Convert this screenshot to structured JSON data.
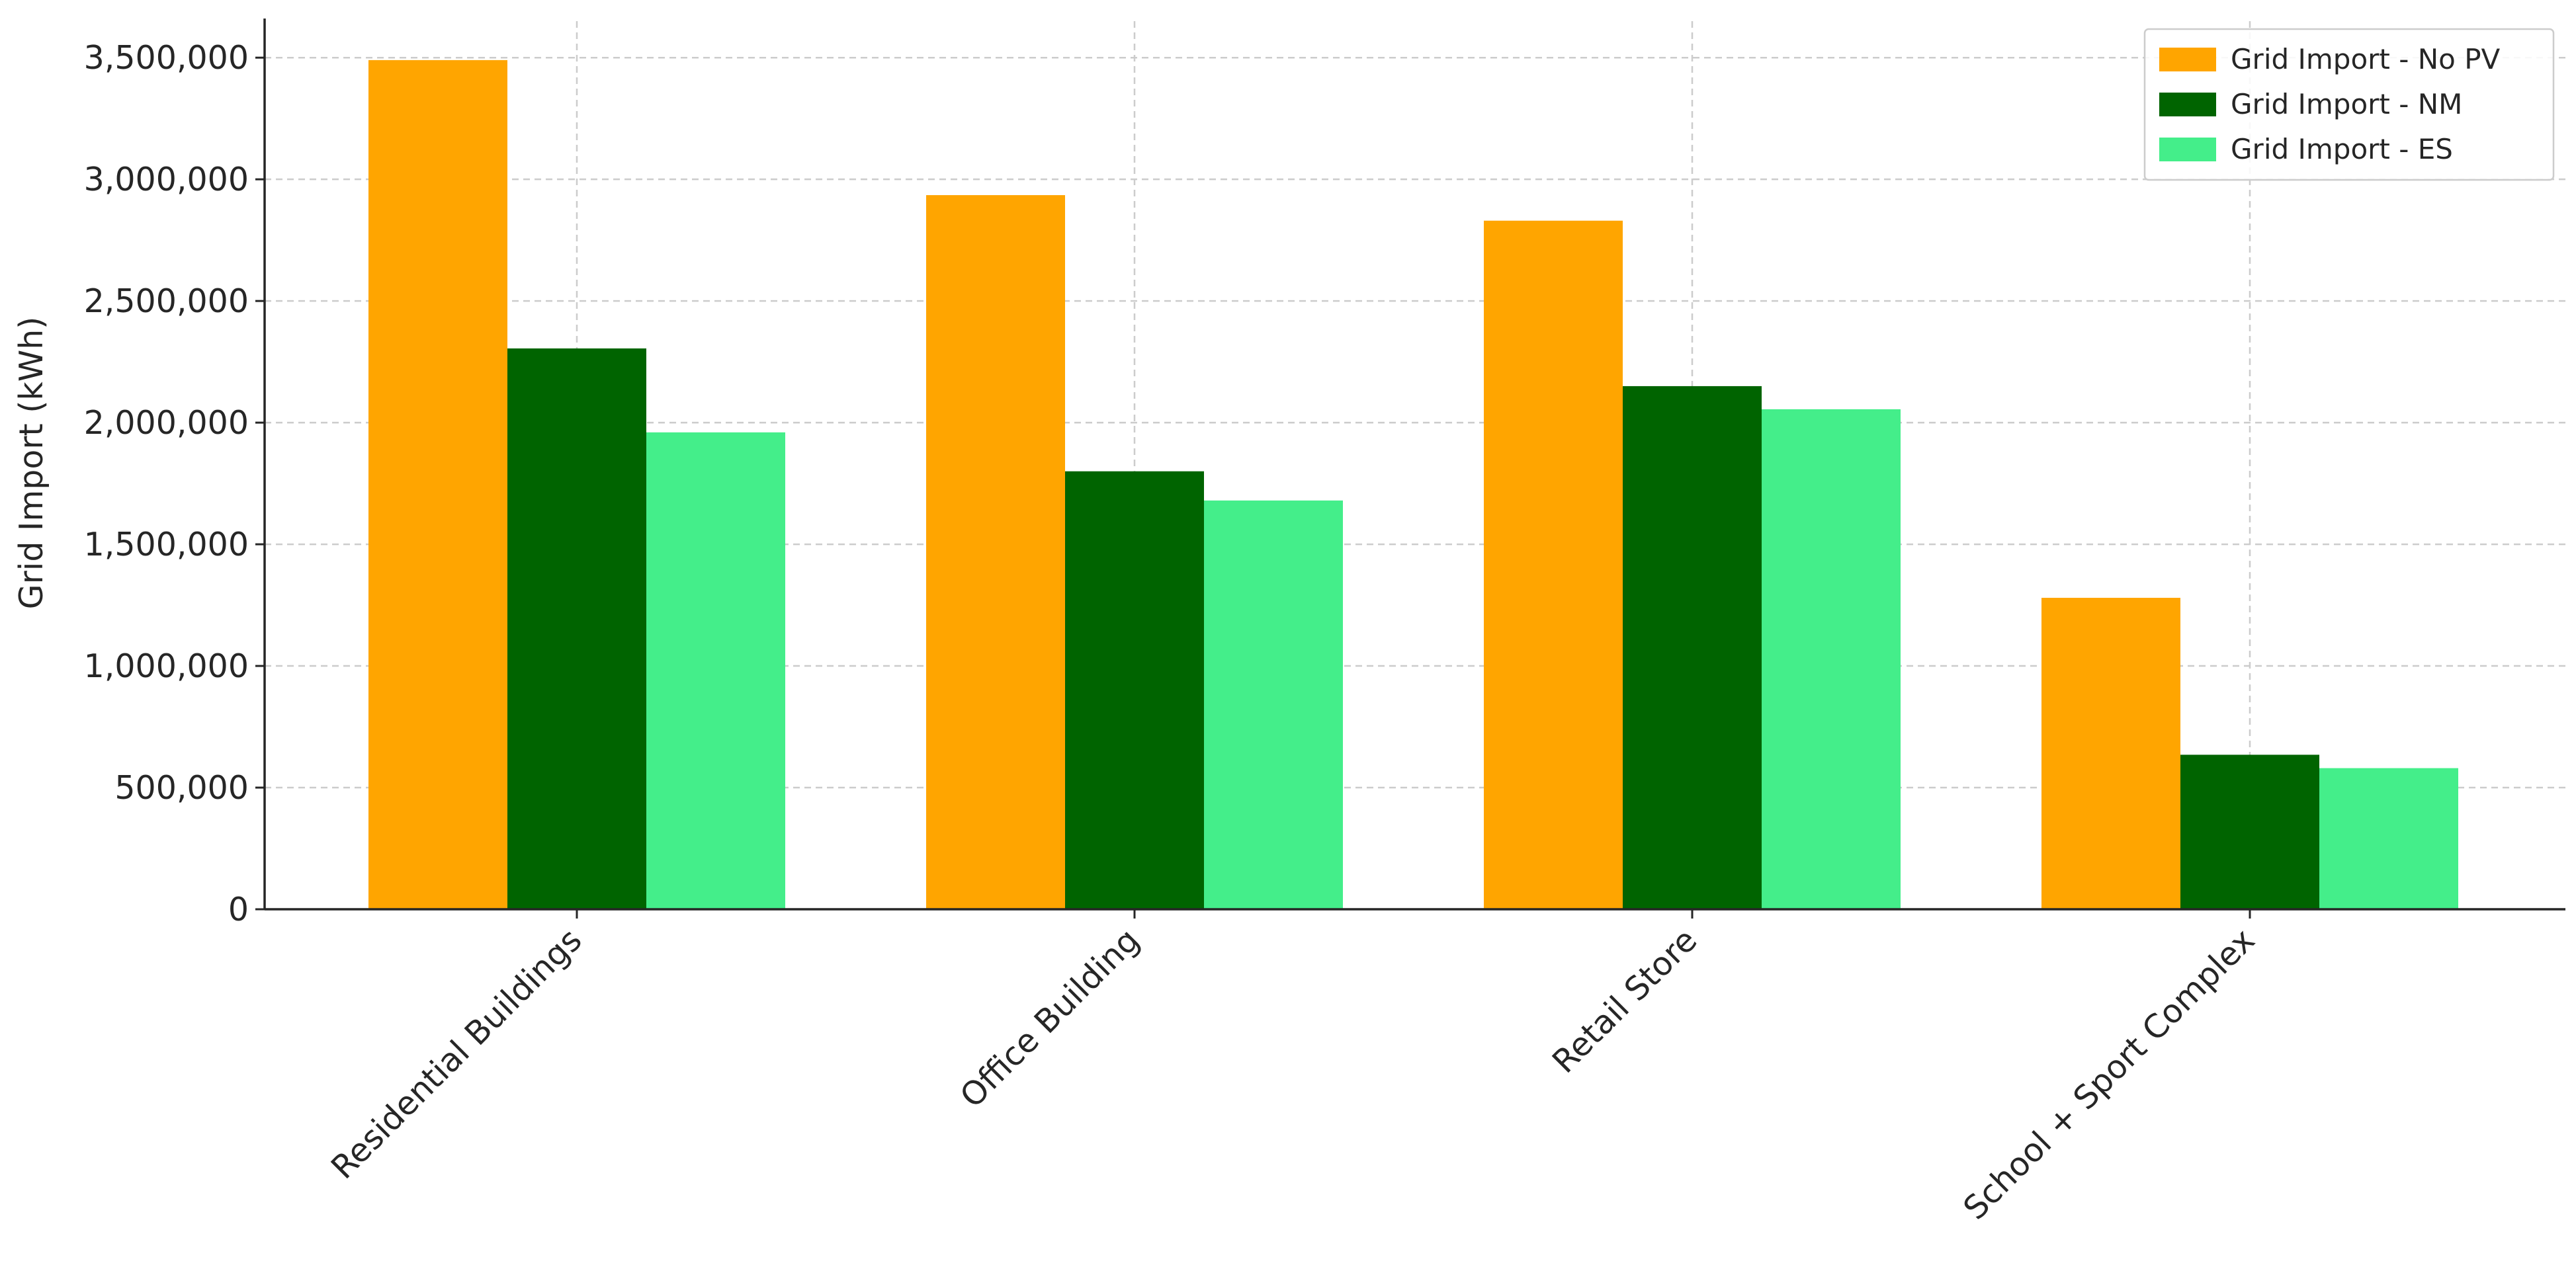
{
  "chart_data": {
    "type": "bar",
    "title": "",
    "xlabel": "",
    "ylabel": "Grid Import (kWh)",
    "categories": [
      "Residential Buildings",
      "Office Building",
      "Retail Store",
      "School + Sport Complex"
    ],
    "series": [
      {
        "name": "Grid Import - No PV",
        "color": "#FFA500",
        "values": [
          3490000,
          2935000,
          2830000,
          1280000
        ]
      },
      {
        "name": "Grid Import - NM",
        "color": "#006400",
        "values": [
          2305000,
          1800000,
          2150000,
          635000
        ]
      },
      {
        "name": "Grid Import - ES",
        "color": "#44EE8A",
        "values": [
          1960000,
          1680000,
          2055000,
          580000
        ]
      }
    ],
    "ylim": [
      0,
      3650000
    ],
    "yticks": [
      0,
      500000,
      1000000,
      1500000,
      2000000,
      2500000,
      3000000,
      3500000
    ],
    "ytick_labels": [
      "0",
      "500,000",
      "1,000,000",
      "1,500,000",
      "2,000,000",
      "2,500,000",
      "3,000,000",
      "3,500,000"
    ],
    "grid": true,
    "legend_position": "top-right",
    "x_tick_rotation": "45-degrees"
  }
}
